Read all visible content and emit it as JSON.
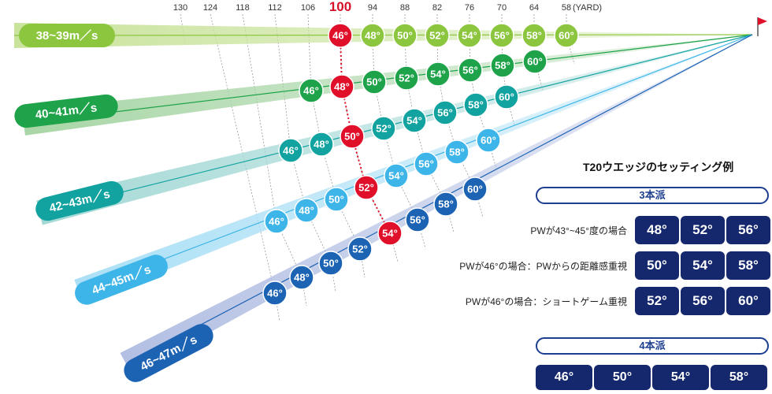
{
  "yardage": {
    "labels": [
      "130",
      "124",
      "118",
      "112",
      "106",
      "100",
      "94",
      "88",
      "82",
      "76",
      "70",
      "64",
      "58"
    ],
    "highlight": "100",
    "unit": "(YARD)"
  },
  "swing_lines": [
    {
      "speed": "38~39m／s",
      "lofts": [
        "46°",
        "48°",
        "50°",
        "52°",
        "54°",
        "56°",
        "58°",
        "60°"
      ],
      "highlight": "46°",
      "color": "#8cc63f",
      "band": "#c9e39c"
    },
    {
      "speed": "40~41m／s",
      "lofts": [
        "46°",
        "48°",
        "50°",
        "52°",
        "54°",
        "56°",
        "58°",
        "60°"
      ],
      "highlight": "48°",
      "color": "#1fa34a",
      "band": "#a9d6a7"
    },
    {
      "speed": "42~43m／s",
      "lofts": [
        "46°",
        "48°",
        "50°",
        "52°",
        "54°",
        "56°",
        "58°",
        "60°"
      ],
      "highlight": "50°",
      "color": "#12a3a0",
      "band": "#a5d9d6"
    },
    {
      "speed": "44~45m／s",
      "lofts": [
        "46°",
        "48°",
        "50°",
        "52°",
        "54°",
        "56°",
        "58°",
        "60°"
      ],
      "highlight": "52°",
      "color": "#3eb5e8",
      "band": "#ace0f6"
    },
    {
      "speed": "46~47m／s",
      "lofts": [
        "46°",
        "48°",
        "50°",
        "52°",
        "54°",
        "56°",
        "58°",
        "60°"
      ],
      "highlight": "54°",
      "color": "#1d63b4",
      "band": "#b3bfe3"
    }
  ],
  "highlight_color": "#e0102a",
  "settings": {
    "title": "T20ウエッジのセッティング例",
    "three": {
      "label": "3本派",
      "rows": [
        {
          "label": "PWが43°~45°度の場合",
          "lofts": [
            "48°",
            "52°",
            "56°"
          ]
        },
        {
          "label": "PWが46°の場合：PWからの距離感重視",
          "lofts": [
            "50°",
            "54°",
            "58°"
          ]
        },
        {
          "label": "PWが46°の場合：ショートゲーム重視",
          "lofts": [
            "52°",
            "56°",
            "60°"
          ]
        }
      ]
    },
    "four": {
      "label": "4本派",
      "lofts": [
        "46°",
        "50°",
        "54°",
        "58°"
      ]
    }
  }
}
